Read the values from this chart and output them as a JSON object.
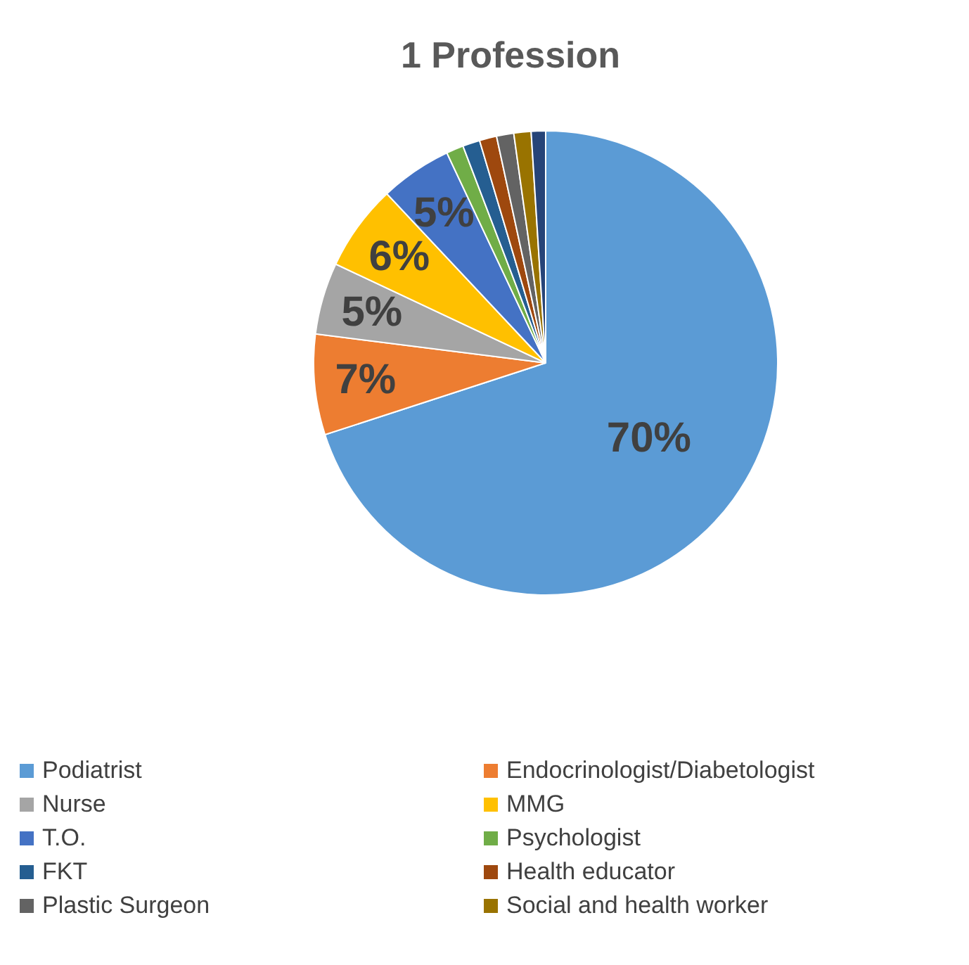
{
  "chart_data": {
    "type": "pie",
    "title": "1 Profession",
    "categories": [
      "Podiatrist",
      "Endocrinologist/Diabetologist",
      "Nurse",
      "MMG",
      "T.O.",
      "Psychologist",
      "FKT",
      "Health educator",
      "Plastic Surgeon",
      "Social and health worker",
      null
    ],
    "values": [
      70,
      7,
      5,
      6,
      5,
      1.2,
      1.2,
      1.2,
      1.2,
      1.2,
      1
    ],
    "value_labels": [
      "70%",
      "7%",
      "5%",
      "6%",
      "5%",
      null,
      null,
      null,
      null,
      null,
      null
    ],
    "colors": [
      "#5b9bd5",
      "#ed7d31",
      "#a5a5a5",
      "#ffc000",
      "#4472c4",
      "#70ad47",
      "#255e91",
      "#9e480e",
      "#636363",
      "#997300",
      "#264478"
    ],
    "legend": "bottom"
  }
}
